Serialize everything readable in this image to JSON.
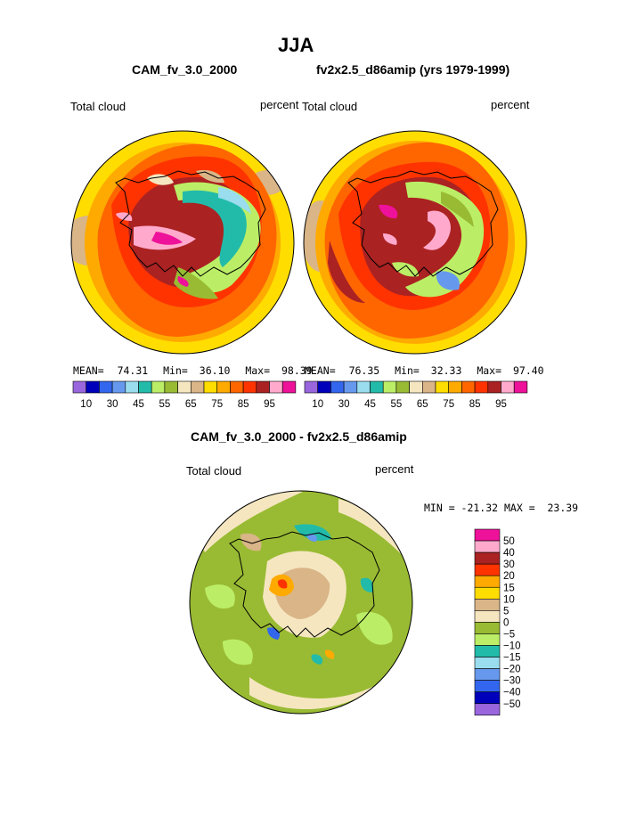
{
  "title": "JJA",
  "left_plot": {
    "heading": "CAM_fv_3.0_2000",
    "field_label": "Total cloud",
    "units": "percent",
    "stats": {
      "mean_label": "MEAN=",
      "mean": "74.31",
      "min_label": "Min=",
      "min": "36.10",
      "max_label": "Max=",
      "max": "98.39"
    }
  },
  "right_plot": {
    "heading": "fv2x2.5_d86amip (yrs 1979-1999)",
    "field_label": "Total cloud",
    "units": "percent",
    "stats": {
      "mean_label": "MEAN=",
      "mean": "76.35",
      "min_label": "Min=",
      "min": "32.33",
      "max_label": "Max=",
      "max": "97.40"
    }
  },
  "diff_plot": {
    "heading": "CAM_fv_3.0_2000 - fv2x2.5_d86amip",
    "field_label": "Total cloud",
    "units": "percent",
    "minmax": "MIN = -21.32 MAX =  23.39"
  },
  "colors": {
    "abs_scale": [
      "#9966dd",
      "#0000bb",
      "#3366ee",
      "#6699ee",
      "#99ddee",
      "#22bbaa",
      "#bbee66",
      "#99bb33",
      "#f5e6c0",
      "#d9b588",
      "#ffdd00",
      "#ffaa00",
      "#ff6600",
      "#ff3300",
      "#aa2222",
      "#ffaacc",
      "#ee1199"
    ],
    "diff_scale": [
      "#ee1199",
      "#ffaacc",
      "#aa2222",
      "#ff3300",
      "#ffaa00",
      "#ffdd00",
      "#d9b588",
      "#f5e6c0",
      "#99bb33",
      "#bbee66",
      "#22bbaa",
      "#99ddee",
      "#6699ee",
      "#3366ee",
      "#0000bb",
      "#9966dd"
    ]
  },
  "chart_data": [
    {
      "type": "heatmap",
      "projection": "polar stereographic (South Pole)",
      "title": "CAM_fv_3.0_2000",
      "variable": "Total cloud",
      "units": "percent",
      "mean": 74.31,
      "min": 36.1,
      "max": 98.39,
      "colorbar_ticks": [
        10,
        30,
        45,
        55,
        65,
        75,
        85,
        95
      ]
    },
    {
      "type": "heatmap",
      "projection": "polar stereographic (South Pole)",
      "title": "fv2x2.5_d86amip (yrs 1979-1999)",
      "variable": "Total cloud",
      "units": "percent",
      "mean": 76.35,
      "min": 32.33,
      "max": 97.4,
      "colorbar_ticks": [
        10,
        30,
        45,
        55,
        65,
        75,
        85,
        95
      ]
    },
    {
      "type": "heatmap",
      "projection": "polar stereographic (South Pole)",
      "title": "CAM_fv_3.0_2000 - fv2x2.5_d86amip",
      "variable": "Total cloud",
      "units": "percent",
      "min": -21.32,
      "max": 23.39,
      "colorbar_ticks": [
        "50",
        "40",
        "30",
        "20",
        "15",
        "10",
        "5",
        "0",
        "−5",
        "−10",
        "−15",
        "−20",
        "−30",
        "−40",
        "−50"
      ]
    }
  ]
}
